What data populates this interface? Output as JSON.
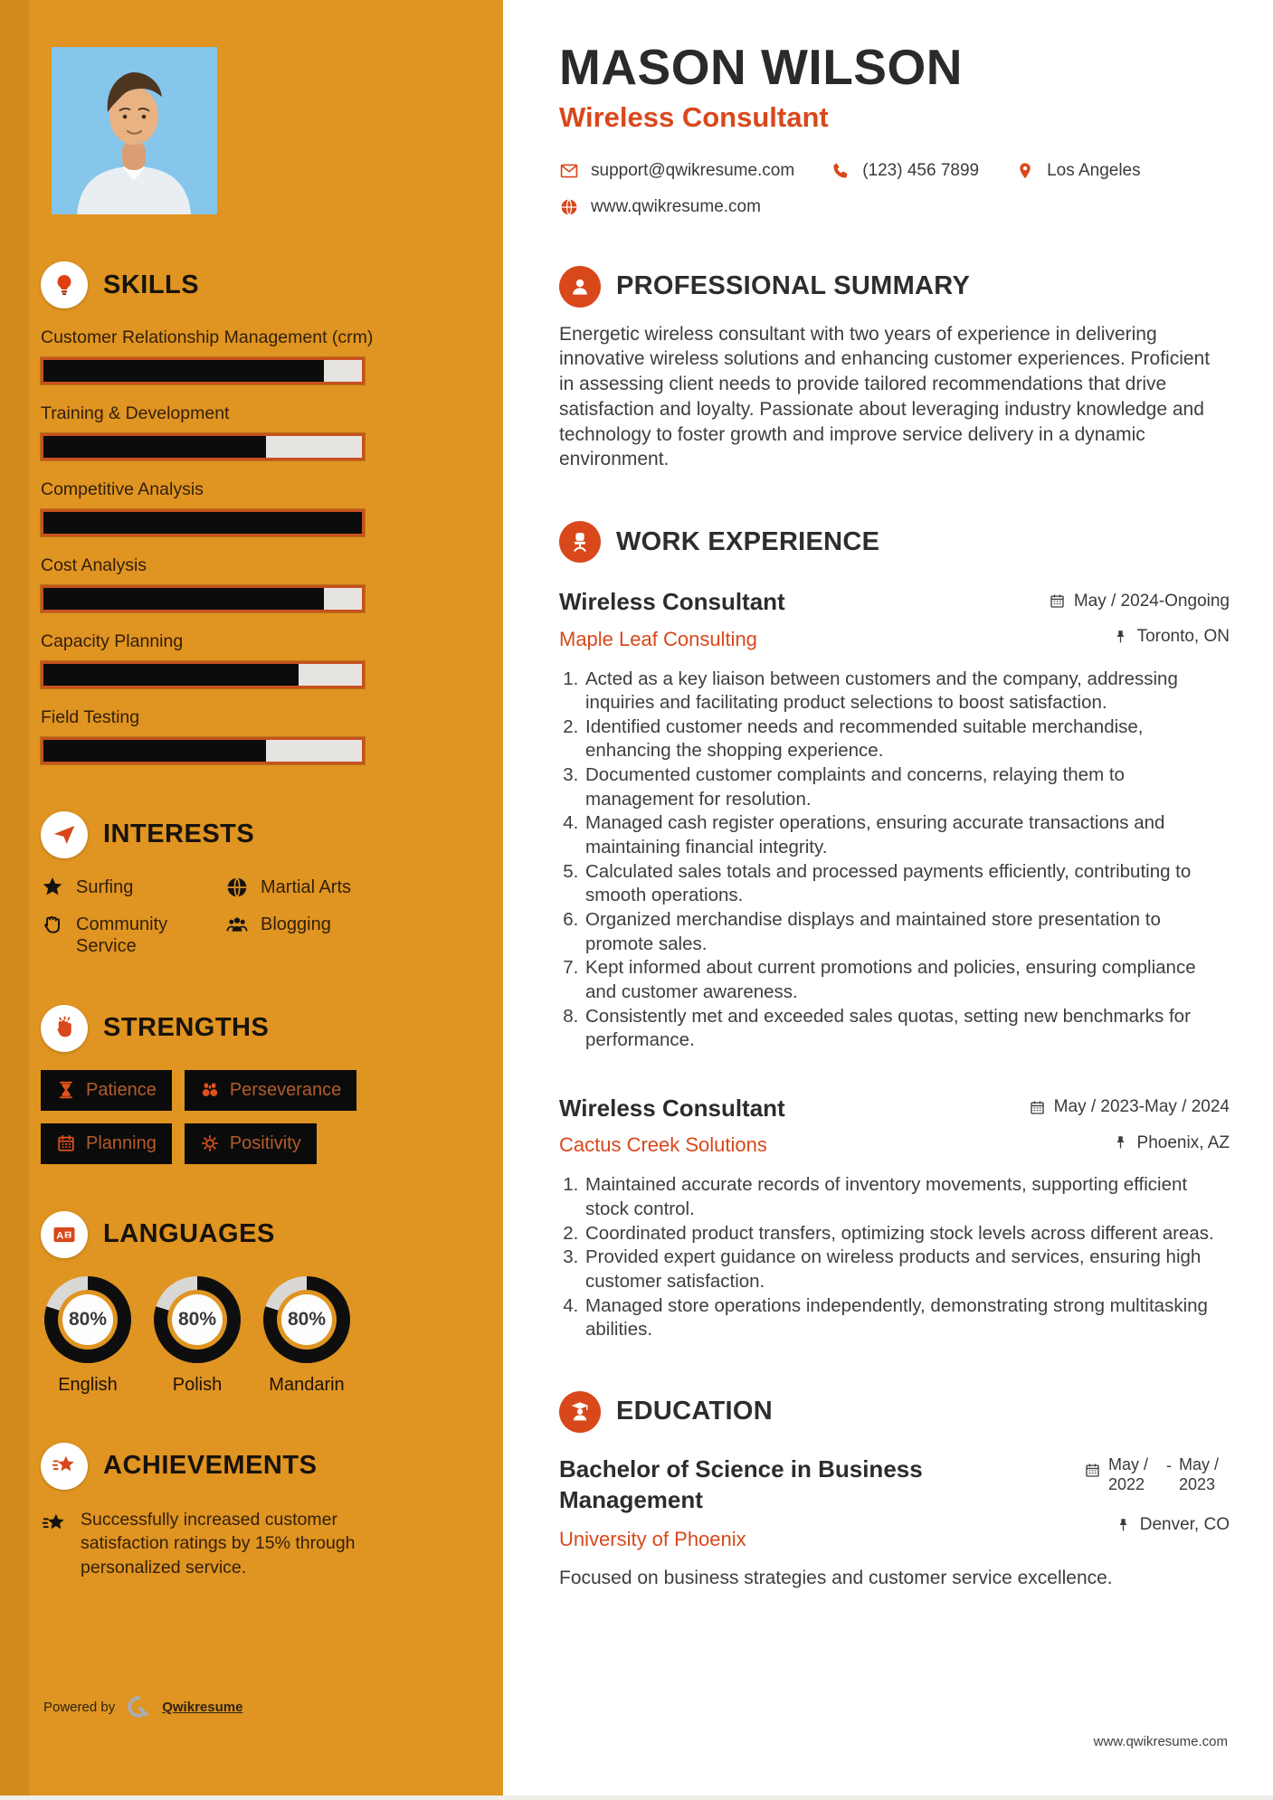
{
  "colors": {
    "sidebar_bg": "#E09421",
    "accent": "#D8481B",
    "bar_fill": "#0C0C0C",
    "bar_empty": "#E6E4E1",
    "badge_bg": "#0B0B0B",
    "badge_text": "#B35C2B",
    "donut_fill": "#0E0E0E",
    "donut_empty": "#DAD8D5",
    "photo_bg": "#85C6EA"
  },
  "header": {
    "name": "MASON WILSON",
    "title": "Wireless Consultant",
    "contact": {
      "email": "support@qwikresume.com",
      "phone": "(123) 456 7899",
      "location": "Los Angeles",
      "website": "www.qwikresume.com"
    }
  },
  "sidebar": {
    "skills": {
      "heading": "SKILLS",
      "items": [
        {
          "label": "Customer Relationship Management (crm)",
          "percent": 88
        },
        {
          "label": "Training & Development",
          "percent": 70
        },
        {
          "label": "Competitive Analysis",
          "percent": 100
        },
        {
          "label": "Cost Analysis",
          "percent": 88
        },
        {
          "label": "Capacity Planning",
          "percent": 80
        },
        {
          "label": "Field Testing",
          "percent": 70
        }
      ]
    },
    "interests": {
      "heading": "INTERESTS",
      "items": [
        {
          "label": "Surfing",
          "icon": "star-icon"
        },
        {
          "label": "Martial Arts",
          "icon": "globe-icon"
        },
        {
          "label": "Community Service",
          "icon": "hand-icon"
        },
        {
          "label": "Blogging",
          "icon": "users-icon"
        }
      ]
    },
    "strengths": {
      "heading": "STRENGTHS",
      "items": [
        {
          "label": "Patience",
          "icon": "hourglass-icon"
        },
        {
          "label": "Perseverance",
          "icon": "binoculars-icon"
        },
        {
          "label": "Planning",
          "icon": "calendar-icon"
        },
        {
          "label": "Positivity",
          "icon": "sun-icon"
        }
      ]
    },
    "languages": {
      "heading": "LANGUAGES",
      "items": [
        {
          "label": "English",
          "percent": 80,
          "percent_label": "80%"
        },
        {
          "label": "Polish",
          "percent": 80,
          "percent_label": "80%"
        },
        {
          "label": "Mandarin",
          "percent": 80,
          "percent_label": "80%"
        }
      ]
    },
    "achievements": {
      "heading": "ACHIEVEMENTS",
      "items": [
        "Successfully increased customer satisfaction ratings by 15% through personalized service."
      ]
    },
    "footer": {
      "powered_by": "Powered by",
      "brand": "Qwikresume"
    }
  },
  "main": {
    "summary": {
      "heading": "PROFESSIONAL SUMMARY",
      "text": "Energetic wireless consultant with two years of experience in delivering innovative wireless solutions and enhancing customer experiences. Proficient in assessing client needs to provide tailored recommendations that drive satisfaction and loyalty. Passionate about leveraging industry knowledge and technology to foster growth and improve service delivery in a dynamic environment."
    },
    "experience": {
      "heading": "WORK EXPERIENCE",
      "jobs": [
        {
          "title": "Wireless Consultant",
          "company": "Maple Leaf Consulting",
          "dates": "May / 2024-Ongoing",
          "location": "Toronto, ON",
          "bullets": [
            "Acted as a key liaison between customers and the company, addressing inquiries and facilitating product selections to boost satisfaction.",
            "Identified customer needs and recommended suitable merchandise, enhancing the shopping experience.",
            "Documented customer complaints and concerns, relaying them to management for resolution.",
            "Managed cash register operations, ensuring accurate transactions and maintaining financial integrity.",
            "Calculated sales totals and processed payments efficiently, contributing to smooth operations.",
            "Organized merchandise displays and maintained store presentation to promote sales.",
            "Kept informed about current promotions and policies, ensuring compliance and customer awareness.",
            "Consistently met and exceeded sales quotas, setting new benchmarks for performance."
          ]
        },
        {
          "title": "Wireless Consultant",
          "company": "Cactus Creek Solutions",
          "dates": "May / 2023-May / 2024",
          "location": "Phoenix, AZ",
          "bullets": [
            "Maintained accurate records of inventory movements, supporting efficient stock control.",
            "Coordinated product transfers, optimizing stock levels across different areas.",
            "Provided expert guidance on wireless products and services, ensuring high customer satisfaction.",
            "Managed store operations independently, demonstrating strong multitasking abilities."
          ]
        }
      ]
    },
    "education": {
      "heading": "EDUCATION",
      "degree": "Bachelor of Science in Business Management",
      "school": "University of Phoenix",
      "dates_from": "May / 2022",
      "dates_separator": "-",
      "dates_to": "May / 2023",
      "location": "Denver, CO",
      "description": "Focused on business strategies and customer service excellence."
    },
    "footer_site": "www.qwikresume.com"
  }
}
